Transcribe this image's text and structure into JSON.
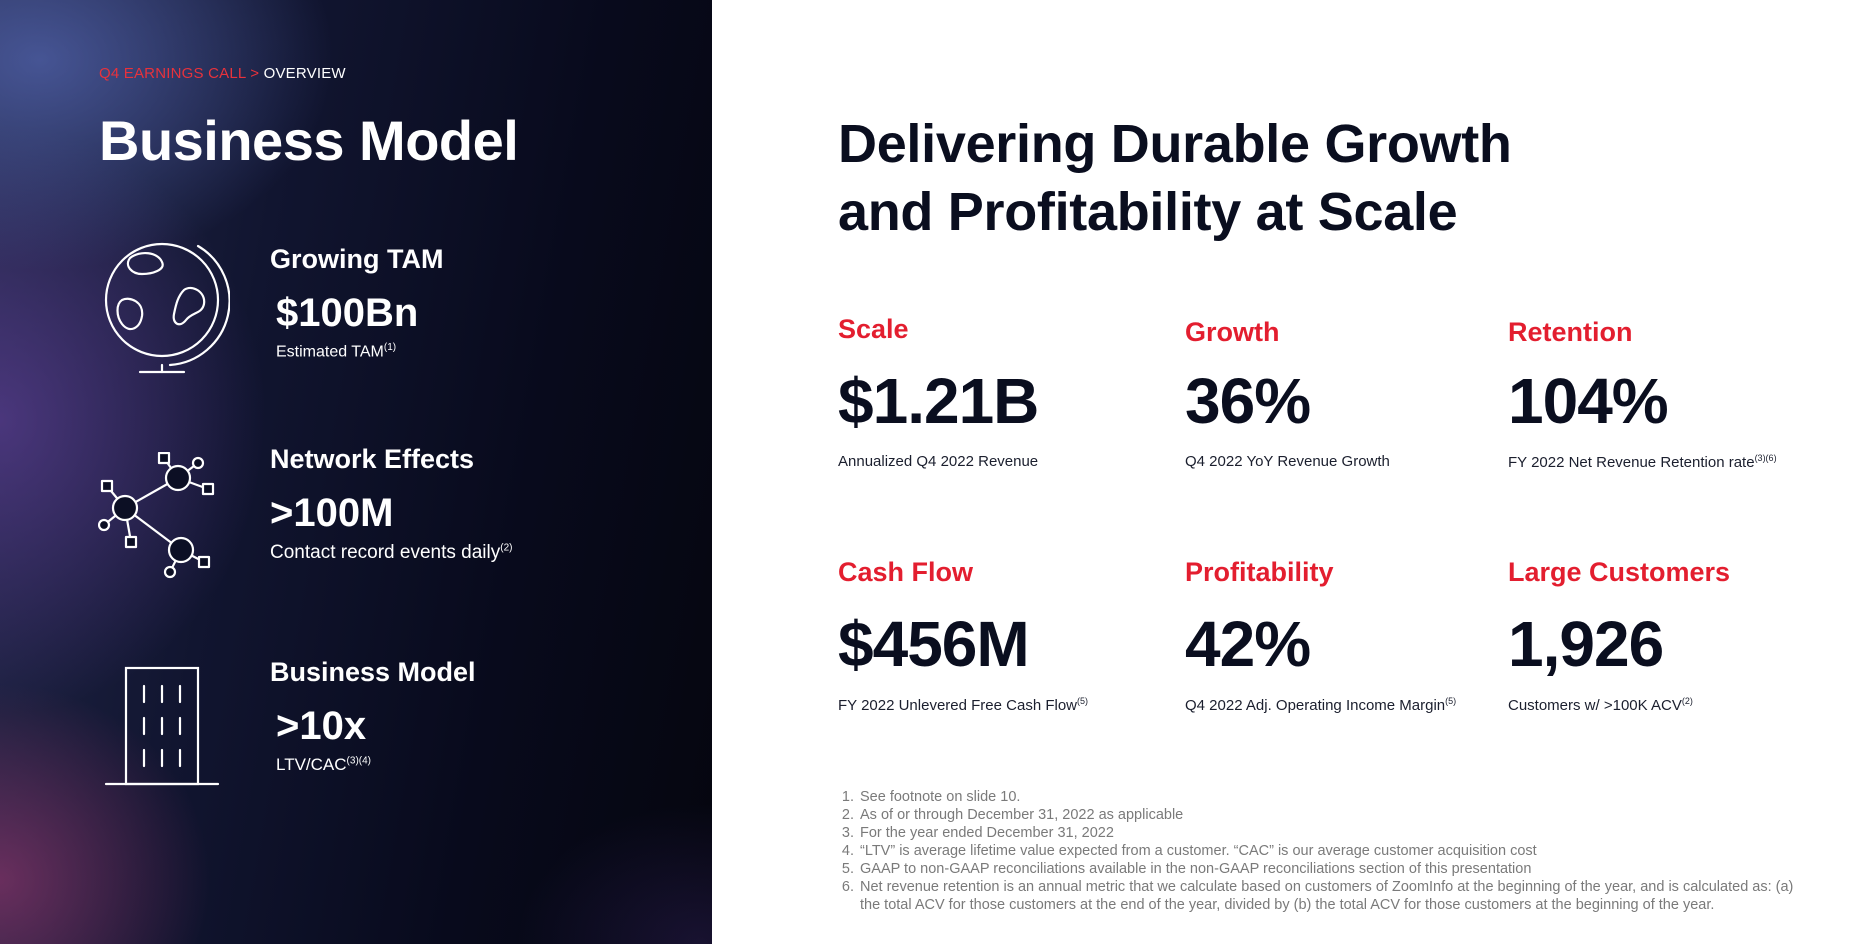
{
  "breadcrumb": {
    "section": "Q4 EARNINGS CALL",
    "separator": ">",
    "page": "OVERVIEW"
  },
  "left": {
    "title": "Business Model",
    "features": [
      {
        "icon": "globe-icon",
        "title": "Growing TAM",
        "value": "$100Bn",
        "note": "Estimated TAM",
        "sup": "(1)"
      },
      {
        "icon": "network-icon",
        "title": "Network Effects",
        "value": ">100M",
        "note": "Contact record events daily",
        "sup": "(2)"
      },
      {
        "icon": "building-icon",
        "title": "Business Model",
        "value": ">10x",
        "note": "LTV/CAC",
        "sup": "(3)(4)"
      }
    ]
  },
  "right": {
    "title_line1": "Delivering Durable Growth",
    "title_line2": "and Profitability at Scale",
    "metrics": [
      {
        "label": "Scale",
        "value": "$1.21B",
        "note": "Annualized Q4 2022 Revenue",
        "sup": ""
      },
      {
        "label": "Growth",
        "value": "36%",
        "note": "Q4 2022 YoY Revenue Growth",
        "sup": ""
      },
      {
        "label": "Retention",
        "value": "104%",
        "note": "FY 2022 Net Revenue Retention rate",
        "sup": "(3)(6)"
      },
      {
        "label": "Cash Flow",
        "value": "$456M",
        "note": "FY 2022 Unlevered Free Cash Flow",
        "sup": "(5)"
      },
      {
        "label": "Profitability",
        "value": "42%",
        "note": "Q4 2022 Adj. Operating Income Margin",
        "sup": "(5)"
      },
      {
        "label": "Large Customers",
        "value": "1,926",
        "note": "Customers w/ >100K ACV",
        "sup": "(2)"
      }
    ]
  },
  "footnotes": [
    "See footnote on slide 10.",
    "As of or through December 31, 2022 as applicable",
    "For the year ended December 31, 2022",
    "“LTV” is average lifetime value expected from a customer. “CAC” is our average customer acquisition cost",
    "GAAP to non-GAAP reconciliations available in the non-GAAP reconciliations section of this presentation",
    "Net revenue retention is an annual metric that we calculate based on customers of ZoomInfo at the beginning of the year, and is calculated as: (a) the total ACV for those customers at the end of the year, divided by (b) the total ACV for those customers at the beginning of the year."
  ],
  "colors": {
    "accent": "#e31e2f",
    "dark_text": "#0a0e1f",
    "panel": "#080a1c"
  }
}
